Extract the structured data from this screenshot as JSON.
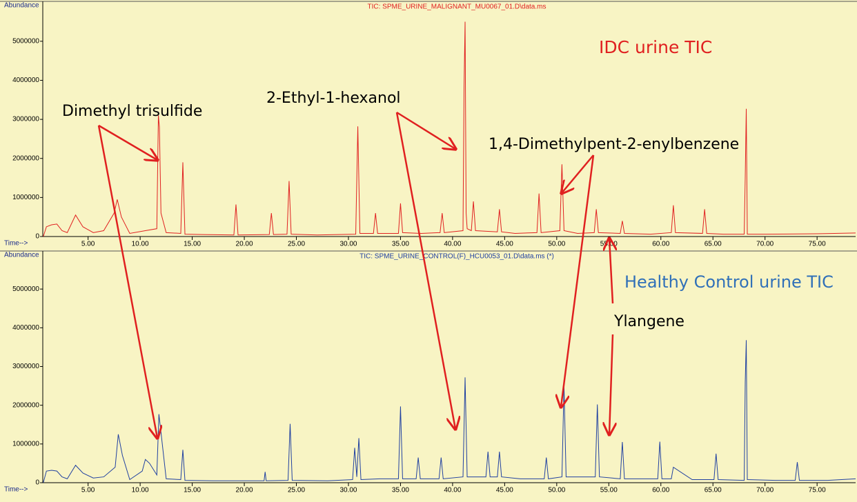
{
  "chart_data": [
    {
      "type": "line",
      "title": "TIC: SPME_URINE_MALIGNANT_MU0067_01.D\\data.ms",
      "y_label": "Abundance",
      "x_label": "Time-->",
      "xlim": [
        0.65,
        78.7
      ],
      "ylim": [
        0,
        5880000
      ],
      "xticks": [
        {
          "value": 5,
          "label": "5.00"
        },
        {
          "value": 10,
          "label": "10.00"
        },
        {
          "value": 15,
          "label": "15.00"
        },
        {
          "value": 20,
          "label": "20.00"
        },
        {
          "value": 25,
          "label": "25.00"
        },
        {
          "value": 30,
          "label": "30.00"
        },
        {
          "value": 35,
          "label": "35.00"
        },
        {
          "value": 40,
          "label": "40.00"
        },
        {
          "value": 45,
          "label": "45.00"
        },
        {
          "value": 50,
          "label": "50.00"
        },
        {
          "value": 55,
          "label": "55.00"
        },
        {
          "value": 60,
          "label": "60.00"
        },
        {
          "value": 65,
          "label": "65.00"
        },
        {
          "value": 70,
          "label": "70.00"
        },
        {
          "value": 75,
          "label": "75.00"
        }
      ],
      "yticks": [
        0,
        1000000,
        2000000,
        3000000,
        4000000,
        5000000
      ],
      "annotations": [
        "Dimethyl trisulfide",
        "2-Ethyl-1-hexanol",
        "1,4-Dimethylpent-2-enylbenzene"
      ],
      "x": [
        0.7,
        1.0,
        1.5,
        2.0,
        2.5,
        3.0,
        3.8,
        4.5,
        5.5,
        6.5,
        7.5,
        7.8,
        8.2,
        9.0,
        10.5,
        11.6,
        11.75,
        11.85,
        12.0,
        12.2,
        12.5,
        13.9,
        14.1,
        14.3,
        16.0,
        19.0,
        19.2,
        19.4,
        22.4,
        22.6,
        22.8,
        24.1,
        24.3,
        24.5,
        27.0,
        30.7,
        30.9,
        31.1,
        32.4,
        32.6,
        32.8,
        34.8,
        35.0,
        35.2,
        37.0,
        38.8,
        39.0,
        39.2,
        41.0,
        41.1,
        41.2,
        41.3,
        41.4,
        41.8,
        42.0,
        42.2,
        44.3,
        44.5,
        44.7,
        46.0,
        48.1,
        48.3,
        48.5,
        50.3,
        50.5,
        50.7,
        52.0,
        53.6,
        53.8,
        54.0,
        56.1,
        56.3,
        56.5,
        59.0,
        61.0,
        61.2,
        61.4,
        64.0,
        64.2,
        64.4,
        66.0,
        68.0,
        68.1,
        68.2,
        68.3,
        70.0,
        75.0,
        78.7
      ],
      "series": [
        {
          "name": "IDC urine TIC",
          "color": "#e02020",
          "values": [
            0,
            250000,
            300000,
            320000,
            150000,
            100000,
            550000,
            250000,
            100000,
            150000,
            600000,
            950000,
            500000,
            80000,
            150000,
            200000,
            3100000,
            2800000,
            600000,
            400000,
            100000,
            80000,
            1900000,
            60000,
            50000,
            40000,
            820000,
            40000,
            50000,
            600000,
            50000,
            60000,
            1420000,
            60000,
            40000,
            60000,
            2820000,
            80000,
            80000,
            600000,
            80000,
            80000,
            850000,
            100000,
            80000,
            100000,
            600000,
            100000,
            150000,
            3800000,
            5500000,
            600000,
            200000,
            150000,
            900000,
            150000,
            120000,
            700000,
            120000,
            80000,
            100000,
            1100000,
            100000,
            150000,
            1850000,
            150000,
            80000,
            100000,
            700000,
            100000,
            80000,
            400000,
            80000,
            60000,
            100000,
            800000,
            100000,
            80000,
            700000,
            80000,
            60000,
            60000,
            1500000,
            3270000,
            60000,
            60000,
            70000,
            90000
          ]
        }
      ]
    },
    {
      "type": "line",
      "title": "TIC: SPME_URINE_CONTROL(F)_HCU0053_01.D\\data.ms (*)",
      "y_label": "Abundance",
      "x_label": "Time-->",
      "xlim": [
        0.65,
        78.7
      ],
      "ylim": [
        0,
        5840000
      ],
      "xticks": [
        {
          "value": 5,
          "label": "5.00"
        },
        {
          "value": 10,
          "label": "10.00"
        },
        {
          "value": 15,
          "label": "15.00"
        },
        {
          "value": 20,
          "label": "20.00"
        },
        {
          "value": 25,
          "label": "25.00"
        },
        {
          "value": 30,
          "label": "30.00"
        },
        {
          "value": 35,
          "label": "35.00"
        },
        {
          "value": 40,
          "label": "40.00"
        },
        {
          "value": 45,
          "label": "45.00"
        },
        {
          "value": 50,
          "label": "50.00"
        },
        {
          "value": 55,
          "label": "55.00"
        },
        {
          "value": 60,
          "label": "60.00"
        },
        {
          "value": 65,
          "label": "65.00"
        },
        {
          "value": 70,
          "label": "70.00"
        },
        {
          "value": 75,
          "label": "75.00"
        }
      ],
      "yticks": [
        0,
        1000000,
        2000000,
        3000000,
        4000000,
        5000000
      ],
      "annotations": [
        "Ylangene"
      ],
      "x": [
        0.7,
        1.0,
        1.5,
        2.0,
        2.5,
        3.0,
        3.8,
        4.5,
        5.5,
        6.5,
        7.6,
        7.9,
        8.3,
        9.0,
        10.2,
        10.5,
        10.9,
        11.6,
        11.8,
        12.0,
        12.5,
        13.9,
        14.1,
        14.3,
        17.0,
        21.9,
        22.0,
        22.1,
        24.2,
        24.4,
        24.6,
        28.0,
        30.4,
        30.6,
        30.8,
        31.0,
        31.2,
        33.0,
        34.8,
        35.0,
        35.2,
        36.5,
        36.7,
        36.9,
        38.7,
        38.9,
        39.1,
        41.0,
        41.2,
        41.4,
        43.2,
        43.4,
        43.6,
        44.3,
        44.5,
        44.7,
        46.5,
        48.8,
        49.0,
        49.2,
        50.5,
        50.7,
        50.9,
        53.7,
        53.9,
        54.1,
        56.1,
        56.3,
        56.5,
        59.7,
        59.9,
        60.1,
        61.0,
        61.2,
        63.0,
        65.1,
        65.3,
        65.5,
        68.0,
        68.1,
        68.2,
        68.3,
        71.0,
        72.9,
        73.1,
        73.3,
        76.0,
        78.7
      ],
      "series": [
        {
          "name": "Healthy Control urine TIC",
          "color": "#2040a0",
          "values": [
            0,
            300000,
            320000,
            300000,
            150000,
            100000,
            450000,
            250000,
            120000,
            150000,
            400000,
            1250000,
            700000,
            80000,
            300000,
            600000,
            500000,
            200000,
            1770000,
            1300000,
            100000,
            80000,
            850000,
            60000,
            50000,
            50000,
            280000,
            50000,
            60000,
            1520000,
            60000,
            50000,
            80000,
            900000,
            150000,
            1150000,
            80000,
            100000,
            100000,
            1970000,
            100000,
            100000,
            650000,
            100000,
            100000,
            650000,
            100000,
            150000,
            2720000,
            150000,
            150000,
            800000,
            150000,
            150000,
            800000,
            150000,
            100000,
            100000,
            650000,
            100000,
            150000,
            2480000,
            150000,
            150000,
            2020000,
            150000,
            100000,
            1050000,
            100000,
            100000,
            1060000,
            100000,
            100000,
            400000,
            80000,
            80000,
            750000,
            80000,
            60000,
            2600000,
            3680000,
            80000,
            60000,
            60000,
            530000,
            60000,
            60000,
            100000
          ]
        }
      ]
    }
  ]
}
